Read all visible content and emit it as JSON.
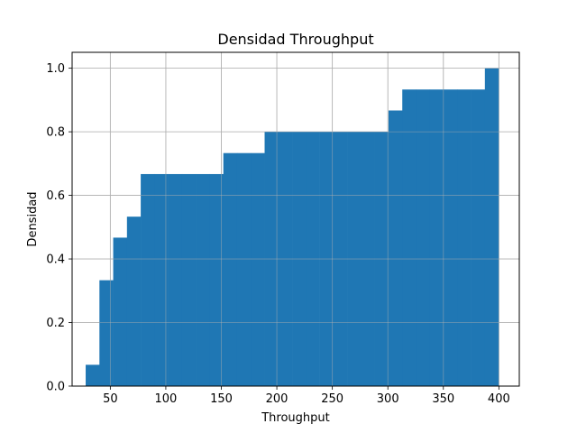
{
  "chart_data": {
    "type": "bar",
    "title": "Densidad Throughput",
    "xlabel": "Throughput",
    "ylabel": "Densidad",
    "xlim": [
      15.6,
      418.4
    ],
    "ylim": [
      0,
      1.05
    ],
    "xticks": [
      50,
      100,
      150,
      200,
      250,
      300,
      350,
      400
    ],
    "yticks": [
      0.0,
      0.2,
      0.4,
      0.6,
      0.8,
      1.0
    ],
    "ytick_labels": [
      "0.0",
      "0.2",
      "0.4",
      "0.6",
      "0.8",
      "1.0"
    ],
    "grid": true,
    "color": "#1f77b4",
    "cumulative": true,
    "bin_edges": [
      27.8,
      40.2,
      52.6,
      65.0,
      77.4,
      89.8,
      102.2,
      114.6,
      127.0,
      139.4,
      151.8,
      164.2,
      176.6,
      189.0,
      201.4,
      213.8,
      226.2,
      238.6,
      251.0,
      263.4,
      275.8,
      288.2,
      300.6,
      313.0,
      325.4,
      337.8,
      350.2,
      362.6,
      375.0,
      387.4,
      399.8
    ],
    "values": [
      0.067,
      0.333,
      0.467,
      0.533,
      0.667,
      0.667,
      0.667,
      0.667,
      0.667,
      0.667,
      0.733,
      0.733,
      0.733,
      0.8,
      0.8,
      0.8,
      0.8,
      0.8,
      0.8,
      0.8,
      0.8,
      0.8,
      0.867,
      0.933,
      0.933,
      0.933,
      0.933,
      0.933,
      0.933,
      1.0
    ]
  }
}
